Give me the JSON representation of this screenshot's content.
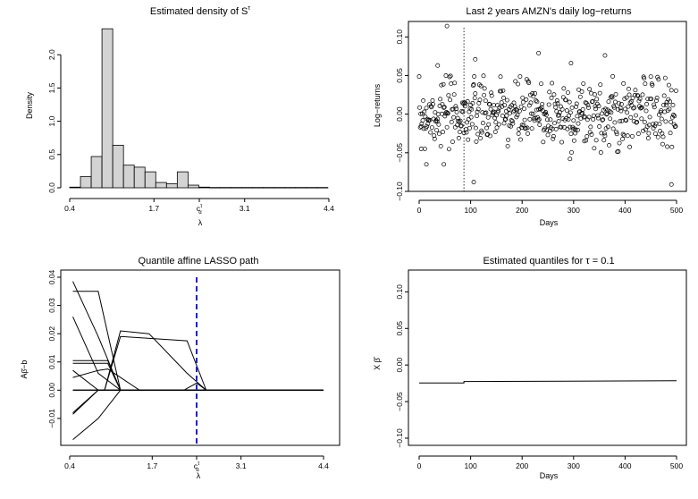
{
  "chart_data": [
    {
      "id": "p1",
      "type": "bar",
      "title": "Estimated density of S",
      "title_superscript": "τ",
      "xlabel": "λ",
      "ylabel": "Density",
      "xlim": [
        0.4,
        4.4
      ],
      "ylim": [
        0,
        2.5
      ],
      "xticks": [
        {
          "value": 0.4,
          "label": "0.4"
        },
        {
          "value": 1.7,
          "label": "1.7"
        },
        {
          "value": 2.4,
          "label": "c",
          "sub": "α",
          "sup": "τ"
        },
        {
          "value": 3.1,
          "label": "3.1"
        },
        {
          "value": 4.4,
          "label": "4.4"
        }
      ],
      "yticks": [
        "0.0",
        "0.5",
        "1.0",
        "1.5",
        "2.0"
      ],
      "bin_width": 0.166,
      "bins_start": [
        0.4,
        0.566,
        0.732,
        0.898,
        1.064,
        1.23,
        1.396,
        1.562,
        1.728,
        1.894,
        2.06,
        2.226,
        2.392,
        2.558,
        2.724,
        2.89,
        3.056,
        3.222,
        3.388,
        3.554,
        3.72,
        3.886,
        4.052,
        4.218
      ],
      "values": [
        0.01,
        0.17,
        0.47,
        2.39,
        0.64,
        0.34,
        0.31,
        0.24,
        0.08,
        0.06,
        0.24,
        0.04,
        0.01,
        0.005,
        0.005,
        0.005,
        0.005,
        0.005,
        0.005,
        0.005,
        0.005,
        0.005,
        0.005,
        0.005
      ]
    },
    {
      "id": "p2",
      "type": "scatter",
      "title": "Last 2 years AMZN's daily log−returns",
      "xlabel": "Days",
      "ylabel": "Log−returns",
      "xlim": [
        0,
        500
      ],
      "ylim": [
        -0.1,
        0.12
      ],
      "xticks": [
        "0",
        "100",
        "200",
        "300",
        "400",
        "500"
      ],
      "yticks": [
        "−0.10",
        "−0.05",
        "0.00",
        "0.05",
        "0.10"
      ],
      "vline_x": 87,
      "seed": 7,
      "n_points": 500,
      "noise_sd": 0.022,
      "outliers": [
        {
          "x": 54,
          "y": 0.114
        },
        {
          "x": 232,
          "y": 0.079
        },
        {
          "x": 361,
          "y": 0.076
        },
        {
          "x": 109,
          "y": 0.071
        },
        {
          "x": 295,
          "y": 0.066
        },
        {
          "x": 36,
          "y": 0.063
        },
        {
          "x": 4,
          "y": -0.045
        },
        {
          "x": 14,
          "y": -0.065
        },
        {
          "x": 48,
          "y": -0.065
        },
        {
          "x": 106,
          "y": -0.088
        },
        {
          "x": 490,
          "y": -0.091
        },
        {
          "x": 293,
          "y": -0.058
        }
      ]
    },
    {
      "id": "p3",
      "type": "line",
      "title": "Quantile affine LASSO path",
      "xlabel": "λ",
      "ylabel": "A β̂ − b",
      "xlim": [
        0.4,
        4.4
      ],
      "ylim": [
        -0.017,
        0.04
      ],
      "vline_x": 2.4,
      "xticks": [
        {
          "value": 0.4,
          "label": "0.4"
        },
        {
          "value": 1.7,
          "label": "1.7"
        },
        {
          "value": 2.4,
          "label": "c",
          "sub": "α",
          "sup": "τ"
        },
        {
          "value": 3.1,
          "label": "3.1"
        },
        {
          "value": 4.4,
          "label": "4.4"
        }
      ],
      "yticks": [
        "−0.01",
        "0.00",
        "0.01",
        "0.02",
        "0.03",
        "0.04"
      ],
      "series": [
        {
          "x": [
            0.45,
            0.85,
            1.2,
            4.4
          ],
          "y": [
            0.0385,
            0.019,
            0.0,
            0.0
          ]
        },
        {
          "x": [
            0.45,
            0.85,
            1.2,
            4.4
          ],
          "y": [
            0.035,
            0.035,
            0.0,
            0.0
          ]
        },
        {
          "x": [
            0.45,
            0.85,
            1.2,
            4.4
          ],
          "y": [
            0.026,
            0.006,
            0.0,
            0.0
          ]
        },
        {
          "x": [
            0.45,
            1.0,
            1.2,
            4.4
          ],
          "y": [
            0.0105,
            0.0105,
            0.0,
            0.0
          ]
        },
        {
          "x": [
            0.45,
            1.0,
            1.2,
            4.4
          ],
          "y": [
            0.0095,
            0.0095,
            0.0,
            0.0
          ]
        },
        {
          "x": [
            0.45,
            0.85,
            1.2,
            4.4
          ],
          "y": [
            0.007,
            0.0,
            0.0,
            0.0
          ]
        },
        {
          "x": [
            0.45,
            0.85,
            1.0,
            1.5,
            4.4
          ],
          "y": [
            0.0045,
            0.007,
            0.0075,
            0.0,
            0.0
          ]
        },
        {
          "x": [
            0.45,
            0.85,
            1.2,
            4.4
          ],
          "y": [
            -0.0085,
            0.0,
            0.0,
            0.0
          ]
        },
        {
          "x": [
            0.45,
            0.85,
            1.2,
            4.4
          ],
          "y": [
            -0.008,
            0.0,
            0.0,
            0.0
          ]
        },
        {
          "x": [
            0.45,
            0.85,
            1.2,
            4.4
          ],
          "y": [
            -0.0175,
            -0.01,
            0.0,
            0.0
          ]
        },
        {
          "x": [
            0.45,
            0.95,
            1.2,
            1.65,
            2.25,
            2.55,
            4.4
          ],
          "y": [
            0.0,
            0.0,
            0.021,
            0.02,
            0.006,
            0.0,
            0.0
          ]
        },
        {
          "x": [
            0.45,
            0.95,
            1.2,
            2.25,
            2.55,
            4.4
          ],
          "y": [
            0.0,
            0.0,
            0.019,
            0.0175,
            0.0,
            0.0
          ]
        },
        {
          "x": [
            0.45,
            2.2,
            2.4,
            2.55,
            4.4
          ],
          "y": [
            0.0,
            0.0,
            0.0025,
            0.0,
            0.0
          ]
        }
      ]
    },
    {
      "id": "p4",
      "type": "line",
      "title": "Estimated quantiles for τ = 0.1",
      "xlabel": "Days",
      "ylabel": "X β̂",
      "xlim": [
        0,
        500
      ],
      "ylim": [
        -0.1,
        0.12
      ],
      "xticks": [
        "0",
        "100",
        "200",
        "300",
        "400",
        "500"
      ],
      "yticks": [
        "−0.10",
        "−0.05",
        "0.00",
        "0.05",
        "0.10"
      ],
      "series": [
        {
          "x": [
            0,
            87,
            87,
            500
          ],
          "y": [
            -0.0245,
            -0.0245,
            -0.0225,
            -0.0215
          ]
        }
      ]
    }
  ]
}
